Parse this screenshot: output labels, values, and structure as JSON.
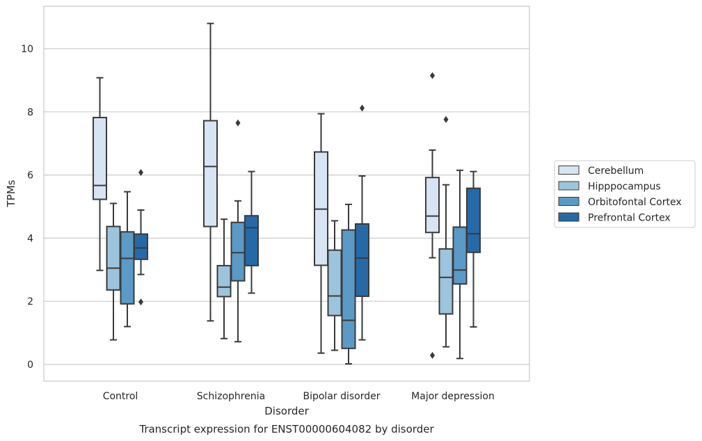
{
  "chart_data": {
    "type": "boxplot",
    "title": "",
    "caption": "Transcript expression for ENST00000604082 by disorder",
    "xlabel": "Disorder",
    "ylabel": "TPMs",
    "ylim": [
      -0.5,
      11.35
    ],
    "yticks": [
      0,
      2,
      4,
      6,
      8,
      10
    ],
    "grid": "horizontal",
    "legend_position": "right",
    "categories": [
      "Control",
      "Schizophrenia",
      "Bipolar disorder",
      "Major depression"
    ],
    "series": [
      {
        "name": "Cerebellum",
        "color": "#d6e4f3",
        "boxes": [
          {
            "whislo": 2.98,
            "q1": 5.23,
            "med": 5.67,
            "q3": 7.82,
            "whishi": 9.08,
            "fliers": []
          },
          {
            "whislo": 1.38,
            "q1": 4.37,
            "med": 6.27,
            "q3": 7.72,
            "whishi": 10.8,
            "fliers": []
          },
          {
            "whislo": 0.36,
            "q1": 3.14,
            "med": 4.92,
            "q3": 6.73,
            "whishi": 7.94,
            "fliers": []
          },
          {
            "whislo": 3.38,
            "q1": 4.18,
            "med": 4.7,
            "q3": 5.92,
            "whishi": 6.79,
            "fliers": [
              9.15,
              0.29
            ]
          }
        ]
      },
      {
        "name": "Hipppocampus",
        "color": "#9dc4dd",
        "boxes": [
          {
            "whislo": 0.78,
            "q1": 2.36,
            "med": 3.05,
            "q3": 4.37,
            "whishi": 5.1,
            "fliers": []
          },
          {
            "whislo": 0.82,
            "q1": 2.15,
            "med": 2.45,
            "q3": 3.13,
            "whishi": 4.6,
            "fliers": []
          },
          {
            "whislo": 0.45,
            "q1": 1.55,
            "med": 2.17,
            "q3": 3.62,
            "whishi": 4.55,
            "fliers": []
          },
          {
            "whislo": 0.56,
            "q1": 1.6,
            "med": 2.76,
            "q3": 3.66,
            "whishi": 5.69,
            "fliers": [
              7.76
            ]
          }
        ]
      },
      {
        "name": "Orbitofontal Cortex",
        "color": "#5b9ac7",
        "boxes": [
          {
            "whislo": 1.2,
            "q1": 1.92,
            "med": 3.36,
            "q3": 4.2,
            "whishi": 5.47,
            "fliers": []
          },
          {
            "whislo": 0.72,
            "q1": 2.65,
            "med": 3.54,
            "q3": 4.5,
            "whishi": 5.18,
            "fliers": [
              7.65
            ]
          },
          {
            "whislo": 0.02,
            "q1": 0.51,
            "med": 1.4,
            "q3": 4.26,
            "whishi": 5.07,
            "fliers": []
          },
          {
            "whislo": 0.19,
            "q1": 2.55,
            "med": 2.99,
            "q3": 4.35,
            "whishi": 6.15,
            "fliers": []
          }
        ]
      },
      {
        "name": "Prefrontal Cortex",
        "color": "#2669a7",
        "boxes": [
          {
            "whislo": 2.85,
            "q1": 3.33,
            "med": 3.69,
            "q3": 4.13,
            "whishi": 4.89,
            "fliers": [
              6.08,
              1.98
            ]
          },
          {
            "whislo": 2.26,
            "q1": 3.13,
            "med": 4.33,
            "q3": 4.71,
            "whishi": 6.11,
            "fliers": []
          },
          {
            "whislo": 0.78,
            "q1": 2.16,
            "med": 3.37,
            "q3": 4.45,
            "whishi": 5.97,
            "fliers": [
              8.12
            ]
          },
          {
            "whislo": 1.19,
            "q1": 3.55,
            "med": 4.14,
            "q3": 5.58,
            "whishi": 6.11,
            "fliers": []
          }
        ]
      }
    ]
  }
}
